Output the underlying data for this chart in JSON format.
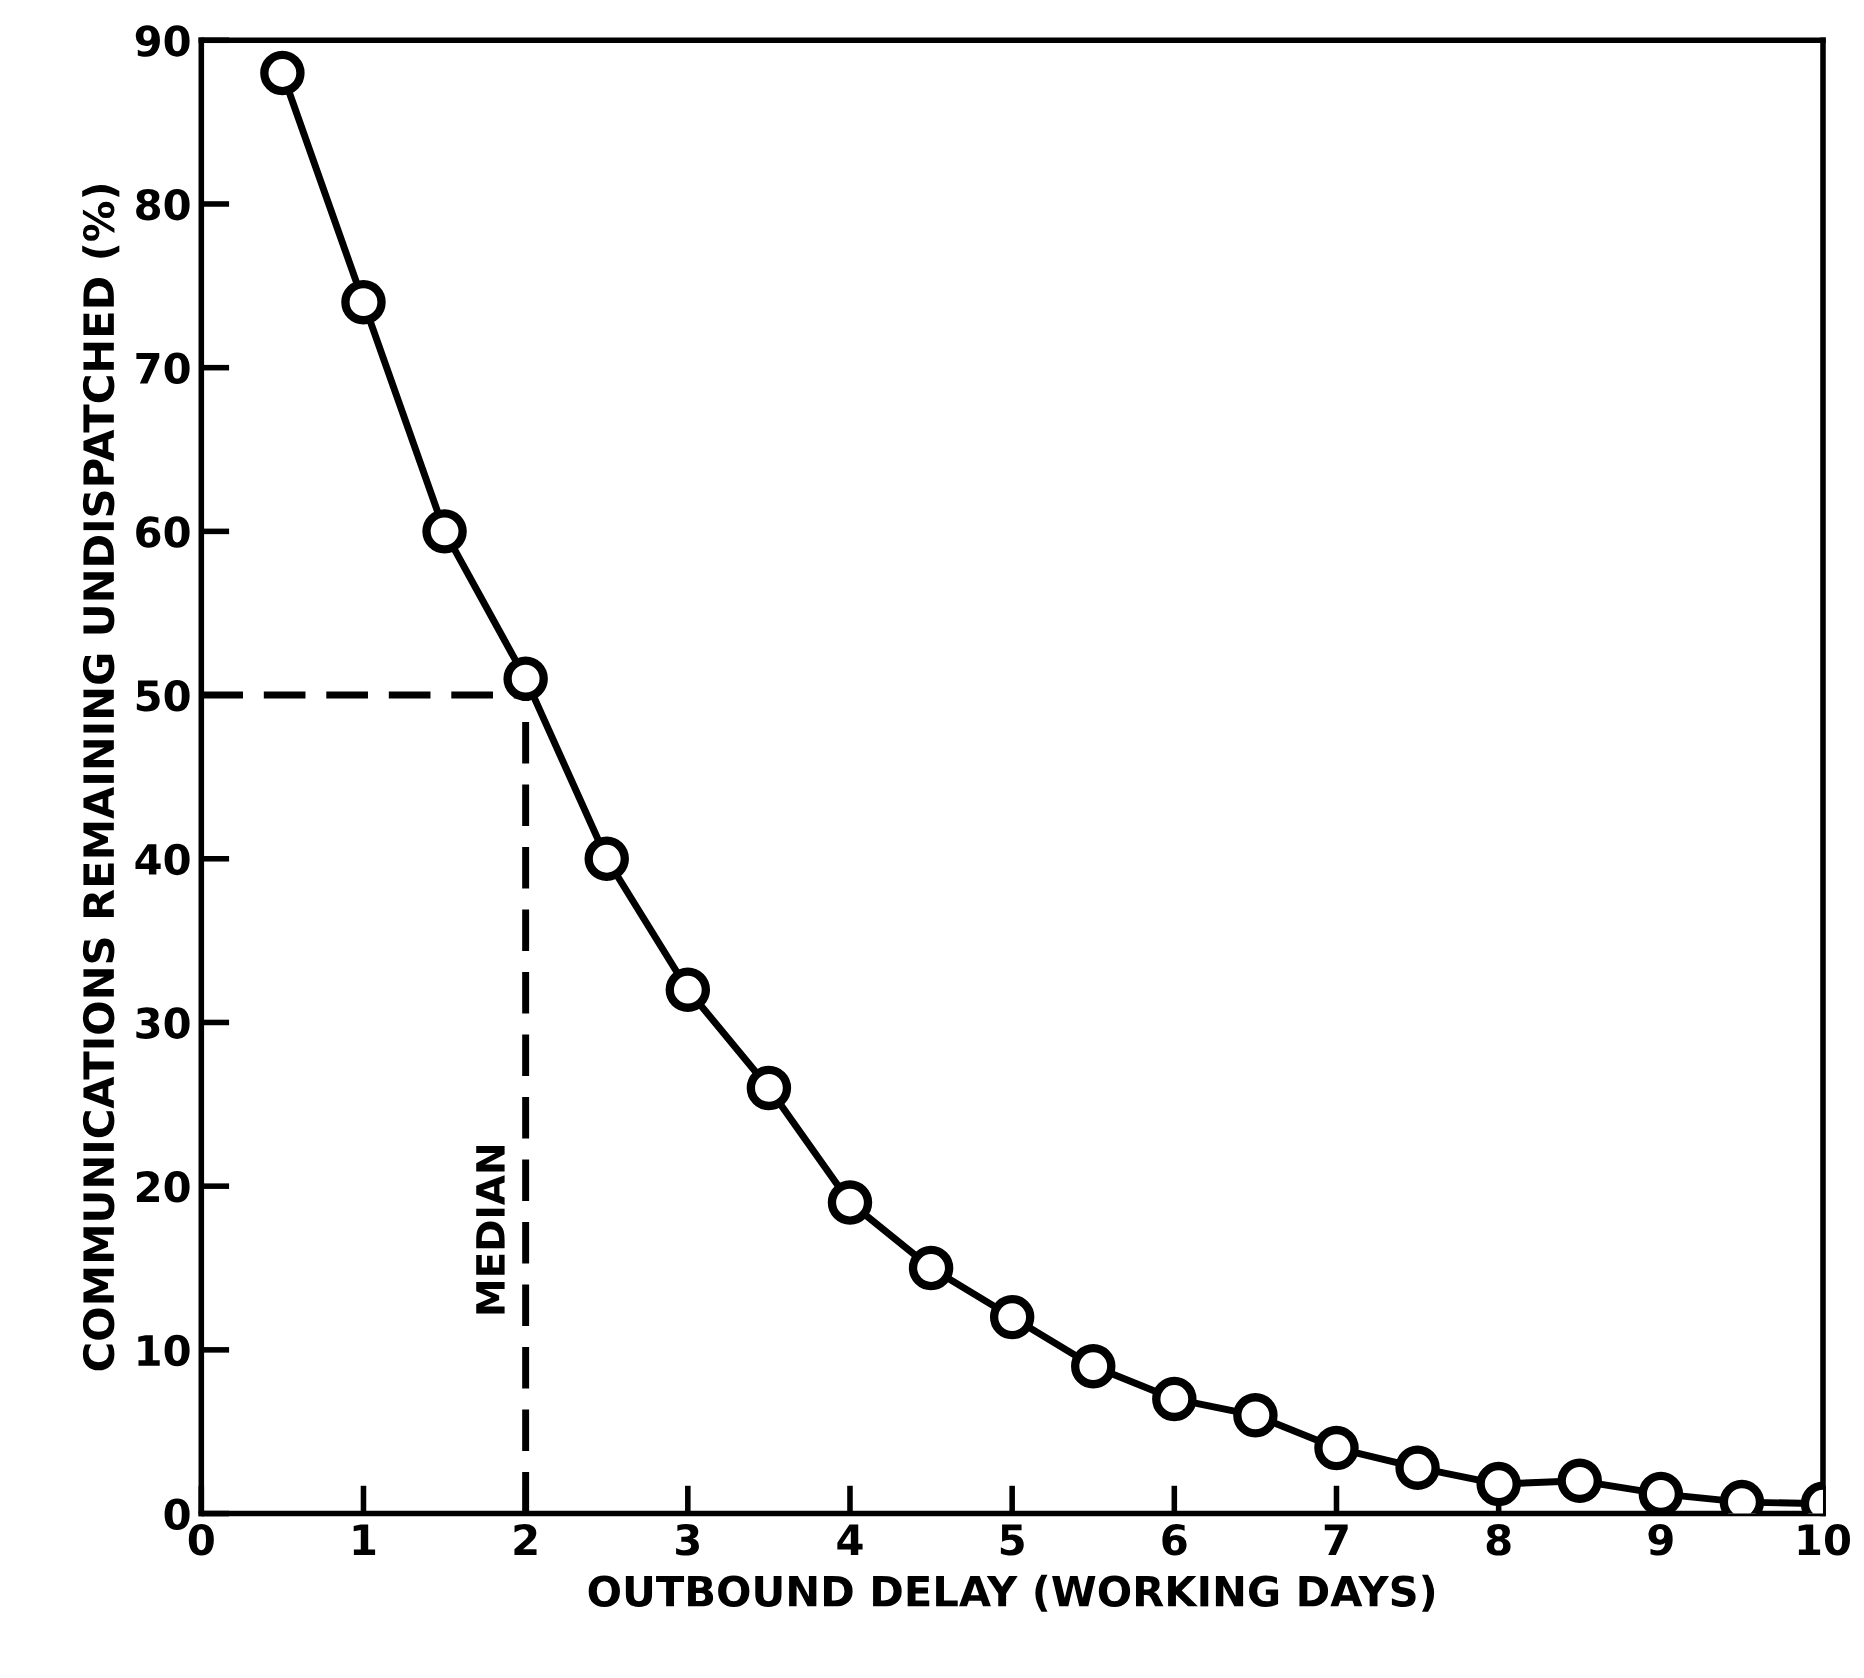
{
  "chart_data": {
    "type": "line",
    "xlabel": "OUTBOUND DELAY (WORKING DAYS)",
    "ylabel": "COMMUNICATIONS REMAINING UNDISPATCHED (%)",
    "x": [
      0.5,
      1,
      1.5,
      2,
      2.5,
      3,
      3.5,
      4,
      4.5,
      5,
      5.5,
      6,
      6.5,
      7,
      7.5,
      8,
      8.5,
      9,
      9.5,
      10
    ],
    "series": [
      {
        "color": "#000000",
        "values": [
          88,
          74,
          60,
          51,
          40,
          32,
          26,
          19,
          15,
          12,
          9,
          7,
          6,
          4,
          2.8,
          1.8,
          2,
          1.2,
          0.7,
          0.6
        ]
      }
    ],
    "xlim": [
      0,
      10
    ],
    "ylim": [
      0,
      90
    ],
    "xticks": [
      0,
      1,
      2,
      3,
      4,
      5,
      6,
      7,
      8,
      9,
      10
    ],
    "yticks": [
      0,
      10,
      20,
      30,
      40,
      50,
      60,
      70,
      80,
      90
    ],
    "ref_lines": [
      {
        "axis": "y",
        "value": 50,
        "line_style": "dashed"
      },
      {
        "axis": "x",
        "value": 2,
        "label": "MEDIAN",
        "line_style": "dashed"
      }
    ],
    "marker": "circle",
    "line_style": "solid",
    "grid": false,
    "legend": false
  }
}
